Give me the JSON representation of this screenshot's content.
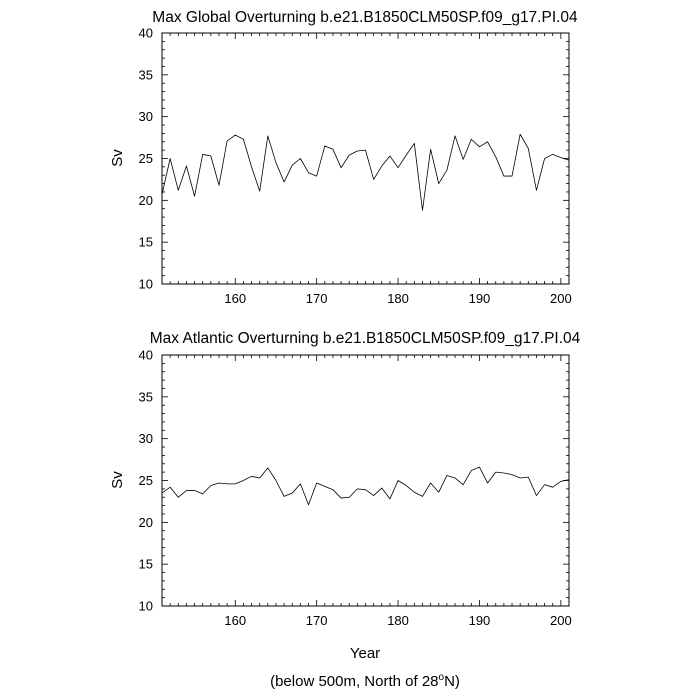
{
  "chart_data": [
    {
      "type": "line",
      "title": "Max Global Overturning b.e21.B1850CLM50SP.f09_g17.PI.04",
      "xlabel": "",
      "ylabel": "Sv",
      "xlim": [
        151,
        201
      ],
      "ylim": [
        10,
        40
      ],
      "xticks": [
        "160",
        "170",
        "180",
        "190",
        "200"
      ],
      "yticks": [
        "10",
        "15",
        "20",
        "25",
        "30",
        "35",
        "40"
      ],
      "grid": false,
      "series": [
        {
          "x": [
            151,
            152,
            153,
            154,
            155,
            156,
            157,
            158,
            159,
            160,
            161,
            162,
            163,
            164,
            165,
            166,
            167,
            168,
            169,
            170,
            171,
            172,
            173,
            174,
            175,
            176,
            177,
            178,
            179,
            180,
            181,
            182,
            183,
            184,
            185,
            186,
            187,
            188,
            189,
            190,
            191,
            192,
            193,
            194,
            195,
            196,
            197,
            198,
            199,
            200,
            201
          ],
          "values": [
            20.7,
            25.0,
            21.2,
            24.1,
            20.5,
            25.5,
            25.3,
            21.8,
            27.1,
            27.8,
            27.3,
            24.0,
            21.1,
            27.7,
            24.5,
            22.2,
            24.2,
            25.0,
            23.3,
            22.9,
            26.5,
            26.1,
            23.9,
            25.4,
            25.9,
            26.0,
            22.5,
            24.1,
            25.3,
            23.9,
            25.4,
            26.8,
            18.8,
            26.1,
            22.0,
            23.6,
            27.7,
            24.9,
            27.3,
            26.4,
            27.0,
            25.2,
            22.9,
            22.9,
            27.9,
            26.2,
            21.2,
            25.0,
            25.5,
            25.1,
            24.8
          ]
        }
      ]
    },
    {
      "type": "line",
      "title": "Max Atlantic Overturning b.e21.B1850CLM50SP.f09_g17.PI.04",
      "xlabel": "Year",
      "ylabel": "Sv",
      "xlim": [
        151,
        201
      ],
      "ylim": [
        10,
        40
      ],
      "xticks": [
        "160",
        "170",
        "180",
        "190",
        "200"
      ],
      "yticks": [
        "10",
        "15",
        "20",
        "25",
        "30",
        "35",
        "40"
      ],
      "grid": false,
      "series": [
        {
          "x": [
            151,
            152,
            153,
            154,
            155,
            156,
            157,
            158,
            159,
            160,
            161,
            162,
            163,
            164,
            165,
            166,
            167,
            168,
            169,
            170,
            171,
            172,
            173,
            174,
            175,
            176,
            177,
            178,
            179,
            180,
            181,
            182,
            183,
            184,
            185,
            186,
            187,
            188,
            189,
            190,
            191,
            192,
            193,
            194,
            195,
            196,
            197,
            198,
            199,
            200,
            201
          ],
          "values": [
            23.5,
            24.2,
            23.0,
            23.8,
            23.8,
            23.4,
            24.4,
            24.7,
            24.6,
            24.6,
            25.0,
            25.5,
            25.3,
            26.5,
            25.0,
            23.1,
            23.5,
            24.6,
            22.1,
            24.7,
            24.3,
            23.9,
            22.9,
            23.0,
            24.0,
            23.9,
            23.2,
            24.1,
            22.8,
            25.0,
            24.4,
            23.6,
            23.1,
            24.7,
            23.6,
            25.6,
            25.3,
            24.5,
            26.2,
            26.6,
            24.7,
            26.0,
            25.9,
            25.7,
            25.3,
            25.4,
            23.2,
            24.5,
            24.2,
            24.9,
            25.1
          ]
        }
      ]
    }
  ],
  "footnote": {
    "prefix": "(below 500m, North of 28",
    "superscript": "o",
    "suffix": "N)"
  }
}
